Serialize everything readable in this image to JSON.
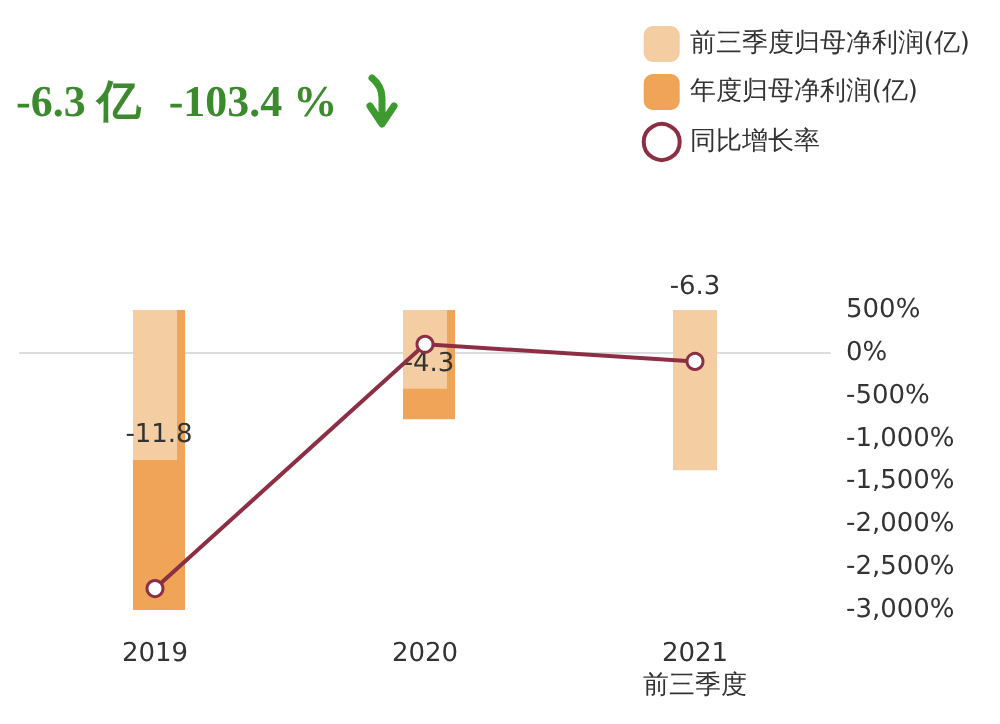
{
  "chart_data": {
    "type": "bar",
    "categories": [
      "2019",
      "2020",
      "2021\n前三季度"
    ],
    "series": [
      {
        "name": "前三季度归母净利润(亿)",
        "color": "#f5cda3",
        "values": [
          -5.9,
          -3.1,
          -6.3
        ],
        "value_labels": [
          null,
          null,
          "-6.3"
        ]
      },
      {
        "name": "年度归母净利润(亿)",
        "color": "#f0a458",
        "values": [
          -11.8,
          -4.3,
          null
        ],
        "value_labels": [
          "-11.8",
          "-4.3",
          null
        ]
      },
      {
        "name": "同比增长率",
        "type": "line",
        "axis": "y2",
        "color": "#8c2f45",
        "values": [
          -2750,
          100,
          -100
        ]
      }
    ],
    "y2lim": [
      -3000,
      500
    ],
    "y2ticks": [
      {
        "value": 500,
        "label": "500%"
      },
      {
        "value": 0,
        "label": "0%"
      },
      {
        "value": -500,
        "label": "-500%"
      },
      {
        "value": -1000,
        "label": "-1,000%"
      },
      {
        "value": -1500,
        "label": "-1,500%"
      },
      {
        "value": -2000,
        "label": "-2,000%"
      },
      {
        "value": -2500,
        "label": "-2,500%"
      },
      {
        "value": -3000,
        "label": "-3,000%"
      }
    ],
    "annotations": [
      "-6.3 亿",
      "-103.4 %"
    ],
    "legend": "top right",
    "grid": false,
    "marker": "circle"
  }
}
